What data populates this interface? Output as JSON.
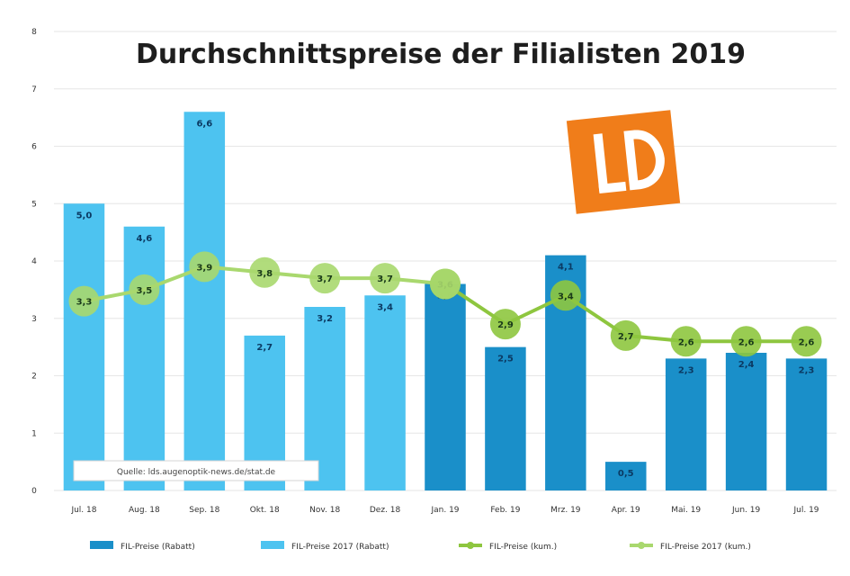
{
  "chart_data": {
    "type": "bar",
    "title": "Durchschnittspreise der Filialisten 2019",
    "categories": [
      "Jul. 18",
      "Aug. 18",
      "Sep. 18",
      "Okt. 18",
      "Nov. 18",
      "Dez. 18",
      "Jan. 19",
      "Feb. 19",
      "Mrz. 19",
      "Apr. 19",
      "Mai. 19",
      "Jun. 19",
      "Jul. 19"
    ],
    "ylim": [
      0,
      8
    ],
    "yticks": [
      0,
      1,
      2,
      3,
      4,
      5,
      6,
      7,
      8
    ],
    "grid": true,
    "legend_position": "bottom",
    "series": [
      {
        "name": "FIL-Preise (Rabatt)",
        "type": "bar",
        "color": "#1a8fc9",
        "values": [
          null,
          null,
          null,
          null,
          null,
          null,
          3.6,
          2.5,
          4.1,
          0.5,
          2.3,
          2.4,
          2.3
        ],
        "labels": [
          "",
          "",
          "",
          "",
          "",
          "",
          "3,6",
          "2,5",
          "4,1",
          "0,5",
          "2,3",
          "2,4",
          "2,3"
        ]
      },
      {
        "name": "FIL-Preise 2017 (Rabatt)",
        "type": "bar",
        "color": "#4dc3f0",
        "values": [
          5.0,
          4.6,
          6.6,
          2.7,
          3.2,
          3.4,
          null,
          null,
          null,
          null,
          null,
          null,
          null
        ],
        "labels": [
          "5,0",
          "4,6",
          "6,6",
          "2,7",
          "3,2",
          "3,4",
          "",
          "",
          "",
          "",
          "",
          "",
          ""
        ]
      },
      {
        "name": "FIL-Preise (kum.)",
        "type": "line",
        "color": "#8ec63f",
        "values": [
          null,
          null,
          null,
          null,
          null,
          null,
          3.6,
          2.9,
          3.4,
          2.7,
          2.6,
          2.6,
          2.6
        ],
        "labels": [
          "",
          "",
          "",
          "",
          "",
          "",
          "3,6",
          "2,9",
          "3,4",
          "2,7",
          "2,6",
          "2,6",
          "2,6"
        ]
      },
      {
        "name": "FIL-Preise 2017 (kum.)",
        "type": "line",
        "color": "#a9d86e",
        "values": [
          3.3,
          3.5,
          3.9,
          3.8,
          3.7,
          3.7,
          3.6,
          null,
          null,
          null,
          null,
          null,
          null
        ],
        "labels": [
          "3,3",
          "3,5",
          "3,9",
          "3,8",
          "3,7",
          "3,7",
          "",
          "",
          "",
          "",
          "",
          "",
          ""
        ]
      }
    ]
  },
  "source_note": "Quelle: lds.augenoptik-news.de/stat.de",
  "logo": {
    "name": "logo-ld-icon",
    "text": "LD",
    "color": "#f07d1a"
  }
}
